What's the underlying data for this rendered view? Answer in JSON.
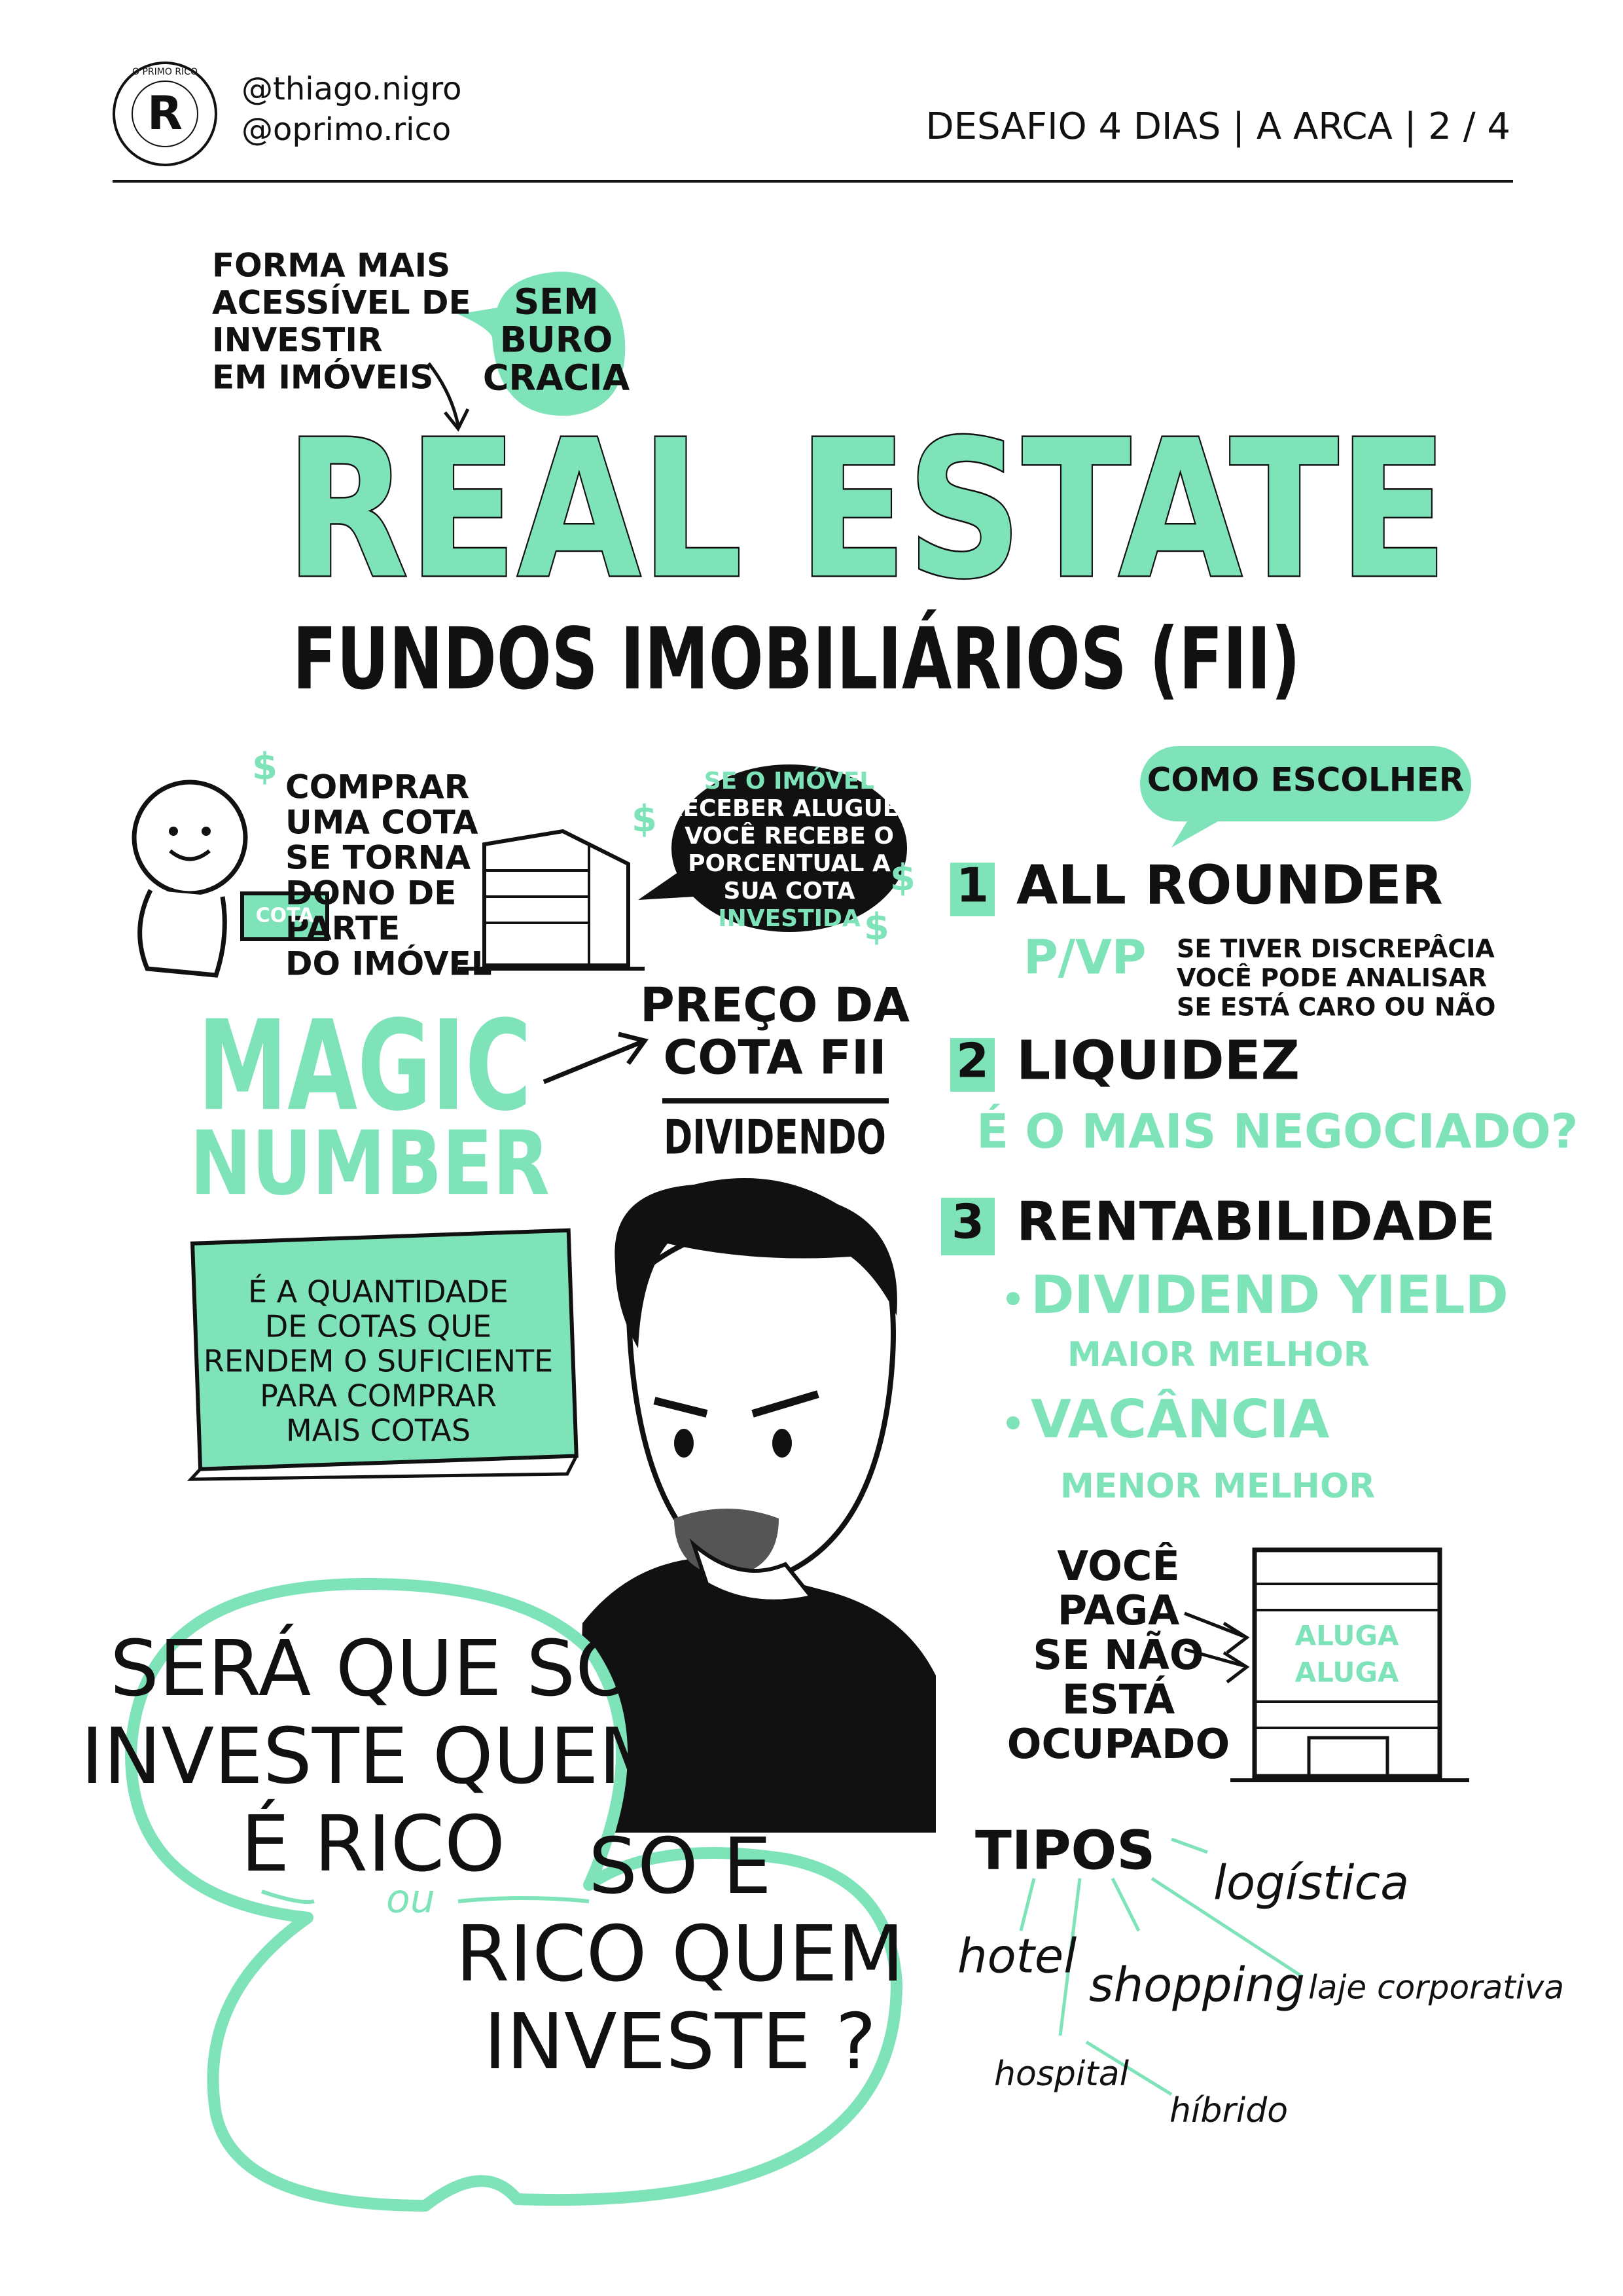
{
  "header": {
    "logo": "R",
    "logo_ring": "O PRIMO RICO",
    "handles": [
      "@thiago.nigro",
      "@oprimo.rico"
    ],
    "series": "DESAFIO 4 DIAS | A ARCA | 2 / 4"
  },
  "intro": {
    "lines": [
      "FORMA MAIS",
      "ACESSÍVEL DE",
      "INVESTIR",
      "EM IMÓVEIS"
    ],
    "bubble": [
      "SEM",
      "BURO",
      "CRACIA"
    ]
  },
  "title": "REAL ESTATE",
  "subtitle": "FUNDOS IMOBILIÁRIOS (FII)",
  "currency": "$",
  "cota": {
    "lines": [
      "COMPRAR",
      "UMA COTA",
      "SE TORNA",
      "DONO DE",
      "PARTE",
      "DO IMÓVEL"
    ],
    "box_label": "COTA"
  },
  "aluguel": [
    "SE O IMÓVEL",
    "RECEBER ALUGUEL",
    "VOCÊ RECEBE O",
    "PORCENTUAL A",
    "SUA COTA",
    "INVESTIDA"
  ],
  "magic_number": {
    "title": [
      "MAGIC",
      "NUMBER"
    ],
    "numerator": [
      "PREÇO DA",
      "COTA FII"
    ],
    "denominator": "DIVIDENDO",
    "note": [
      "É A QUANTIDADE",
      "DE COTAS QUE",
      "RENDEM O SUFICIENTE",
      "PARA COMPRAR",
      "MAIS COTAS"
    ]
  },
  "como_escolher": {
    "title": "COMO ESCOLHER",
    "items": [
      {
        "number": "1",
        "title": "ALL ROUNDER",
        "points": [
          {
            "label": "P/VP",
            "note": [
              "SE TIVER DISCREPÂCIA",
              "VOCÊ PODE ANALISAR",
              "SE ESTÁ CARO OU NÃO"
            ]
          }
        ]
      },
      {
        "number": "2",
        "title": "LIQUIDEZ",
        "points": [
          {
            "label": "É O MAIS NEGOCIADO?"
          }
        ]
      },
      {
        "number": "3",
        "title": "RENTABILIDADE",
        "points": [
          {
            "label": "DIVIDEND YIELD",
            "note": [
              "MAIOR MELHOR"
            ]
          },
          {
            "label": "VACÂNCIA",
            "note": [
              "MENOR MELHOR"
            ]
          }
        ]
      }
    ]
  },
  "vacancia": {
    "lines": [
      "VOCÊ",
      "PAGA",
      "SE NÃO",
      "ESTÁ",
      "OCUPADO"
    ],
    "building": [
      "ALUGA",
      "ALUGA"
    ]
  },
  "tipos": {
    "title": "TIPOS",
    "items": [
      "logística",
      "hotel",
      "shopping",
      "laje corporativa",
      "hospital",
      "híbrido"
    ]
  },
  "question": {
    "part1": [
      "SERÁ QUE SÓ",
      "INVESTE QUEM",
      "É RICO"
    ],
    "or": "ou",
    "part2": [
      "SÓ É",
      "RICO QUEM",
      "INVESTE ?"
    ]
  }
}
